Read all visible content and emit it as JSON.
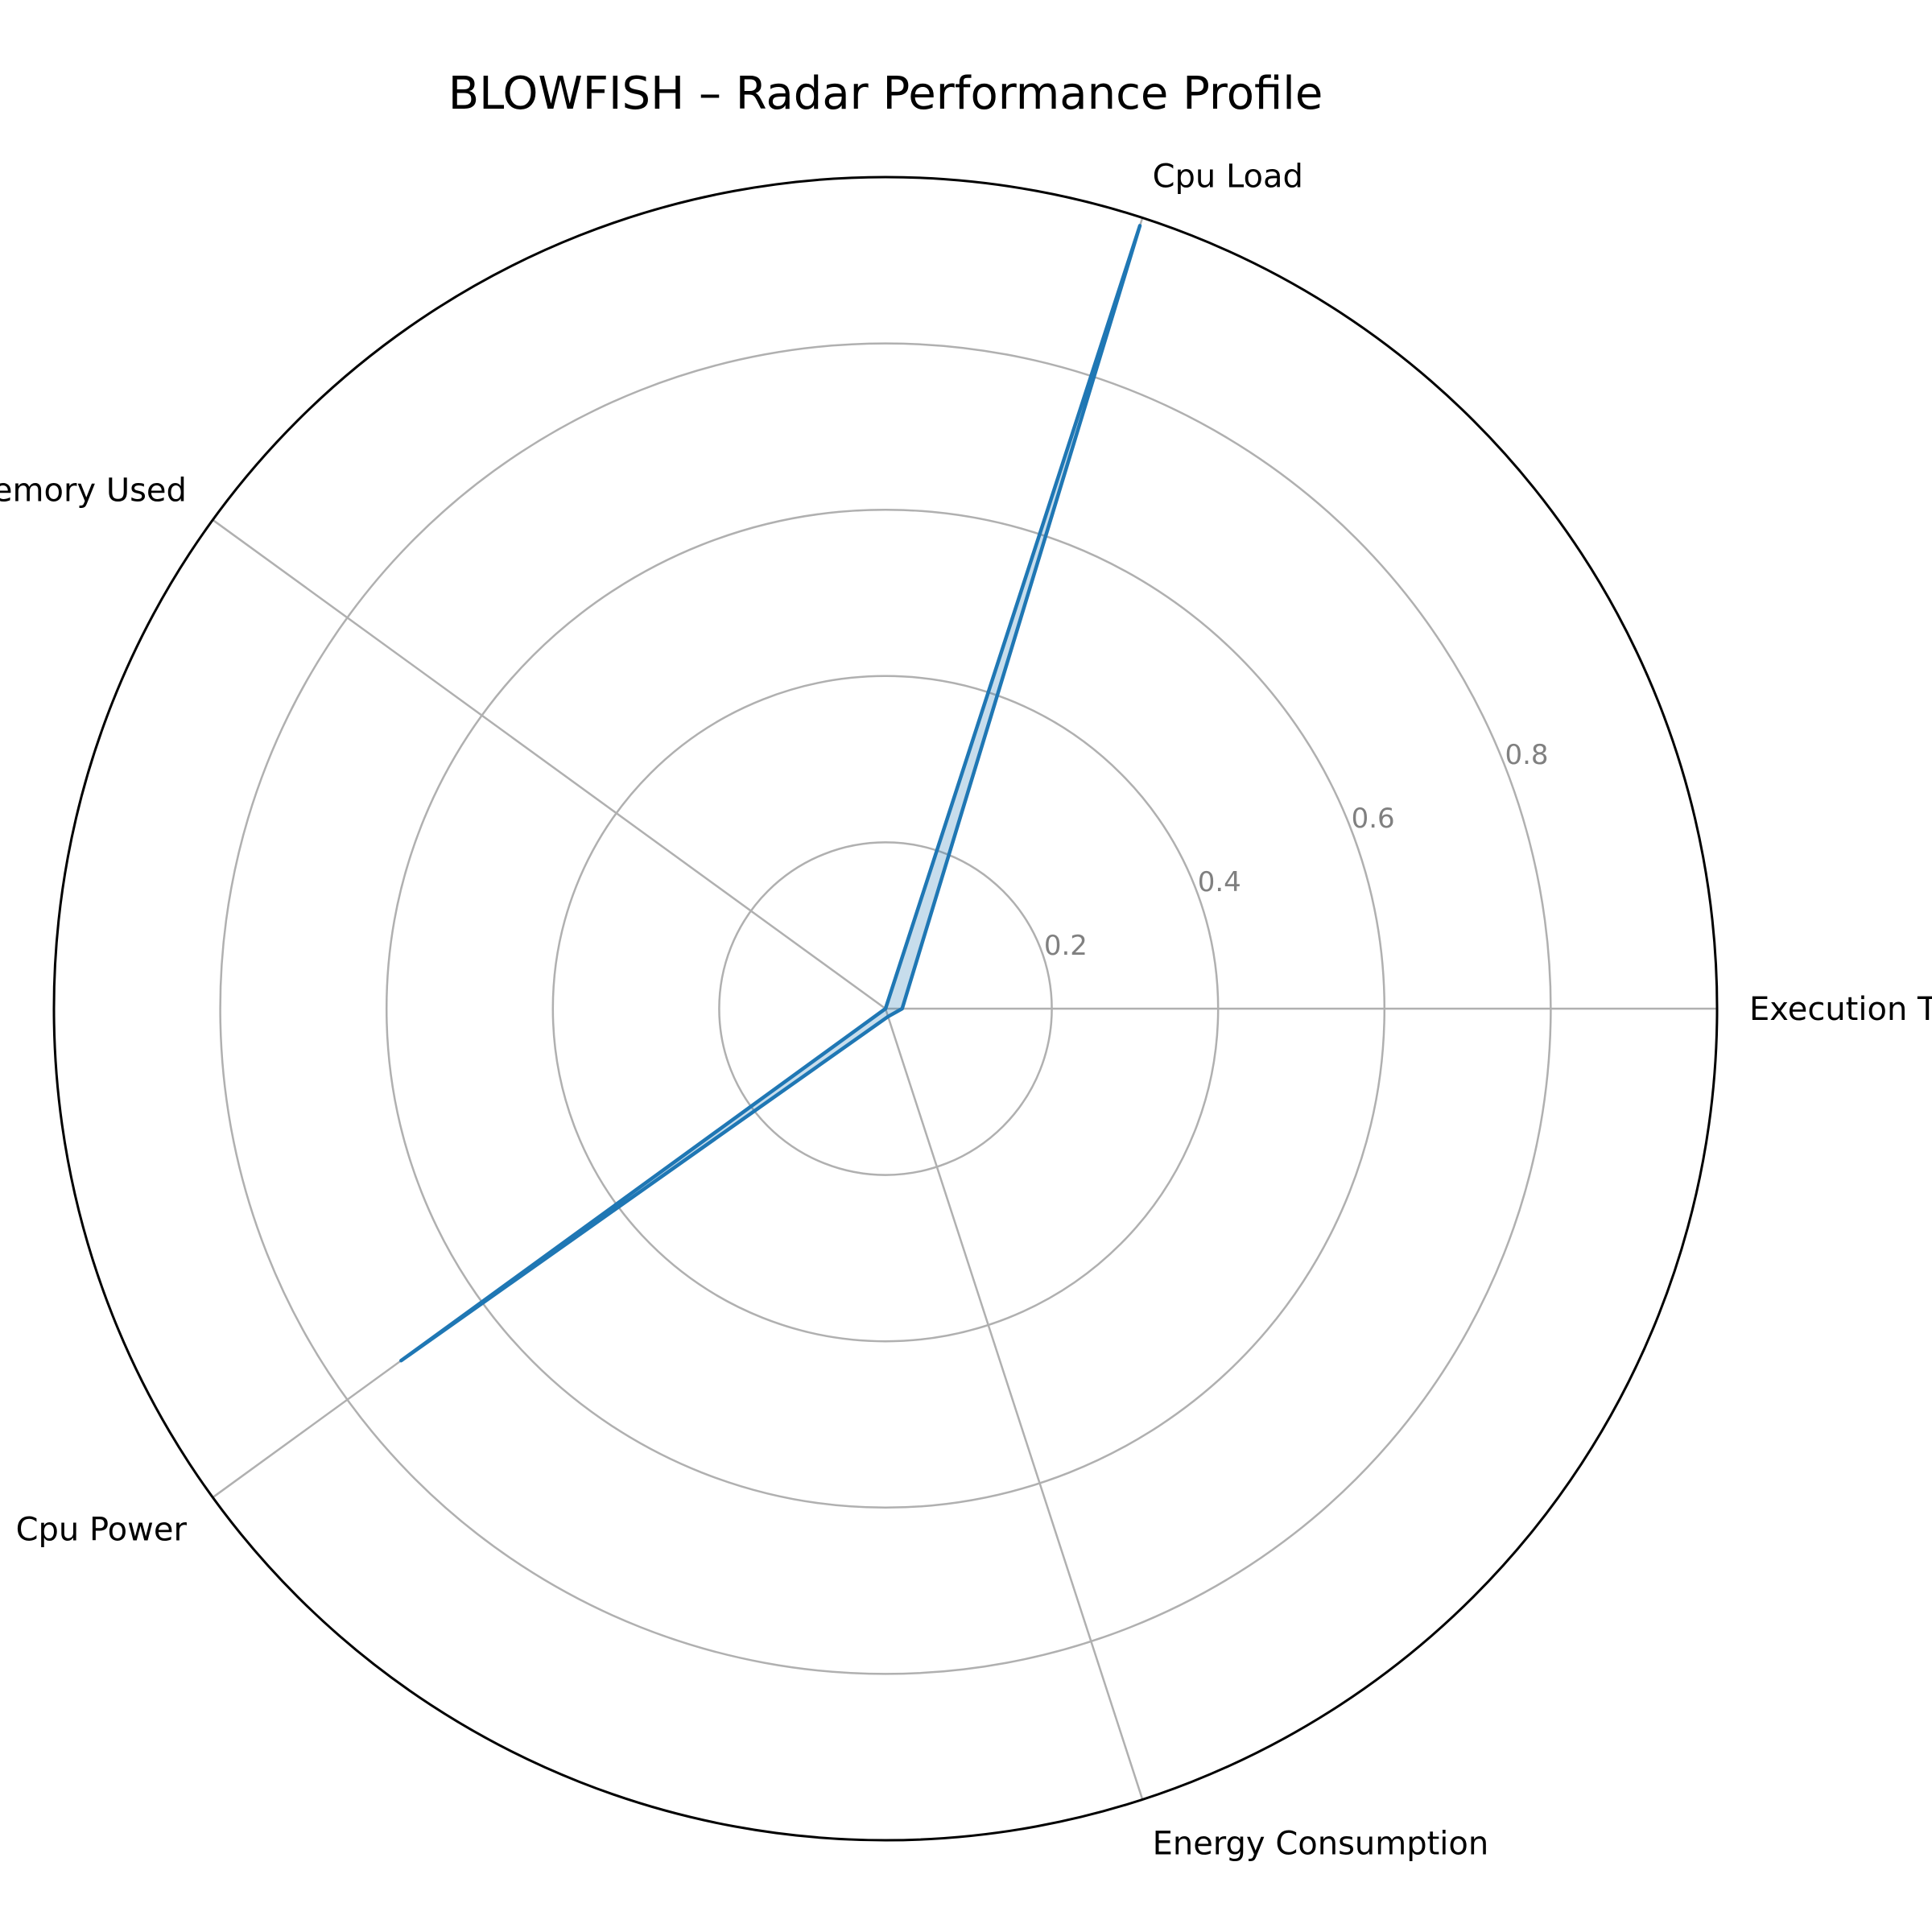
{
  "chart_data": {
    "type": "radar",
    "title": "BLOWFISH – Radar Performance Profile",
    "categories": [
      "Execution Time",
      "Cpu Load",
      "Memory Used",
      "Cpu Power",
      "Energy Consumption"
    ],
    "series": [
      {
        "values": [
          0.02,
          0.99,
          0.0,
          0.72,
          0.01
        ]
      }
    ],
    "rlim": [
      0,
      1.0
    ],
    "rticks": [
      0.2,
      0.4,
      0.6,
      0.8
    ],
    "rtick_labels": [
      "0.2",
      "0.4",
      "0.6",
      "0.8"
    ],
    "grid": true,
    "colors": {
      "line": "#1f77b4",
      "fill": "#1f77b4",
      "grid": "#b0b0b0",
      "tick_text": "#808080",
      "frame": "#000000"
    }
  }
}
